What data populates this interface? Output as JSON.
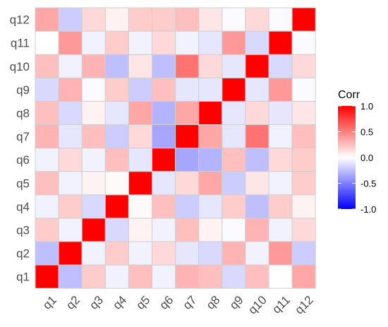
{
  "chart_data": {
    "type": "heatmap",
    "variables": [
      "q1",
      "q2",
      "q3",
      "q4",
      "q5",
      "q6",
      "q7",
      "q8",
      "q9",
      "q10",
      "q11",
      "q12"
    ],
    "matrix": [
      [
        1.0,
        -0.25,
        0.2,
        -0.05,
        0.25,
        -0.05,
        0.3,
        0.25,
        -0.15,
        0.25,
        0.0,
        0.35
      ],
      [
        -0.25,
        1.0,
        -0.05,
        0.2,
        -0.05,
        0.15,
        -0.1,
        -0.15,
        0.3,
        -0.05,
        0.4,
        -0.2
      ],
      [
        0.2,
        -0.05,
        1.0,
        -0.15,
        0.05,
        -0.05,
        0.25,
        0.05,
        -0.02,
        0.3,
        -0.05,
        0.15
      ],
      [
        -0.05,
        0.2,
        -0.15,
        1.0,
        0.02,
        0.25,
        -0.2,
        -0.1,
        0.2,
        -0.25,
        0.2,
        0.05
      ],
      [
        0.25,
        -0.05,
        0.05,
        0.02,
        1.0,
        -0.1,
        0.15,
        0.35,
        -0.2,
        0.1,
        -0.05,
        0.2
      ],
      [
        -0.05,
        0.15,
        -0.05,
        0.25,
        -0.1,
        1.0,
        -0.35,
        -0.3,
        0.25,
        -0.25,
        0.15,
        0.2
      ],
      [
        0.3,
        -0.1,
        0.25,
        -0.2,
        0.15,
        -0.35,
        1.0,
        0.35,
        -0.1,
        0.55,
        -0.05,
        0.25
      ],
      [
        0.25,
        -0.15,
        0.05,
        -0.1,
        0.35,
        -0.3,
        0.35,
        1.0,
        -0.1,
        0.15,
        -0.1,
        0.1
      ],
      [
        -0.15,
        0.3,
        -0.02,
        0.2,
        -0.2,
        0.25,
        -0.1,
        -0.1,
        1.0,
        -0.1,
        0.4,
        -0.02
      ],
      [
        0.25,
        -0.05,
        0.3,
        -0.25,
        0.1,
        -0.25,
        0.55,
        0.15,
        -0.1,
        1.0,
        -0.15,
        0.15
      ],
      [
        0.0,
        0.4,
        -0.05,
        0.2,
        -0.05,
        0.15,
        -0.05,
        -0.1,
        0.4,
        -0.15,
        1.0,
        -0.02
      ],
      [
        0.35,
        -0.2,
        0.15,
        0.05,
        0.2,
        0.2,
        0.25,
        0.1,
        -0.02,
        0.15,
        -0.02,
        1.0
      ]
    ],
    "x_order": [
      "q1",
      "q2",
      "q3",
      "q4",
      "q5",
      "q6",
      "q7",
      "q8",
      "q9",
      "q10",
      "q11",
      "q12"
    ],
    "y_order_bottom_to_top": [
      "q1",
      "q2",
      "q3",
      "q4",
      "q5",
      "q6",
      "q7",
      "q8",
      "q9",
      "q10",
      "q11",
      "q12"
    ],
    "color_scale": {
      "min": -1.0,
      "mid": 0.0,
      "max": 1.0,
      "low_color": "#0000ff",
      "mid_color": "#ffffff",
      "high_color": "#ff0000"
    },
    "legend": {
      "title": "Corr",
      "ticks": [
        "1.0",
        "0.5",
        "0.0",
        "-0.5",
        "-1.0"
      ],
      "position": "right"
    },
    "grid": false
  }
}
